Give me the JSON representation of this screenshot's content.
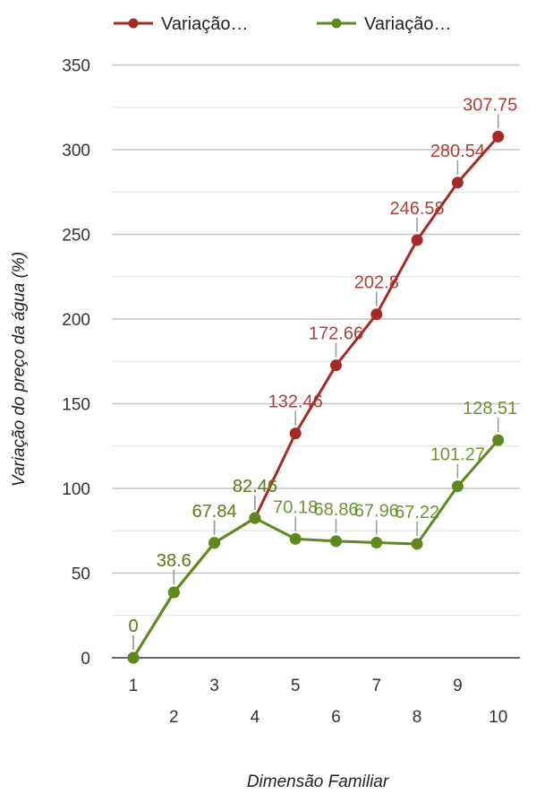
{
  "chart_data": {
    "type": "line",
    "title": "",
    "xlabel": "Dimensão Familiar",
    "ylabel": "Variação do preço da água (%)",
    "ylim": [
      0,
      350
    ],
    "yticks": [
      0,
      50,
      100,
      150,
      200,
      250,
      300,
      350
    ],
    "categories": [
      "1",
      "2",
      "3",
      "4",
      "5",
      "6",
      "7",
      "8",
      "9",
      "10"
    ],
    "grid": true,
    "legend_position": "top",
    "series": [
      {
        "name": "Variação…",
        "color": "#a52a24",
        "values": [
          0,
          38.6,
          67.84,
          82.46,
          132.46,
          172.66,
          202.8,
          246.58,
          280.54,
          307.75
        ],
        "labels": [
          "0",
          "38.6",
          "67.84",
          "82.46",
          "132.46",
          "172.66",
          "202.8",
          "246.58",
          "280.54",
          "307.75"
        ]
      },
      {
        "name": "Variação…",
        "color": "#5c8a1e",
        "values": [
          0,
          38.6,
          67.84,
          82.46,
          70.18,
          68.86,
          67.96,
          67.22,
          101.27,
          128.51
        ],
        "labels": [
          "0",
          "38.6",
          "67.84",
          "82.46",
          "70.18",
          "68.86",
          "67.96",
          "67.22",
          "101.27",
          "128.51"
        ]
      }
    ]
  }
}
